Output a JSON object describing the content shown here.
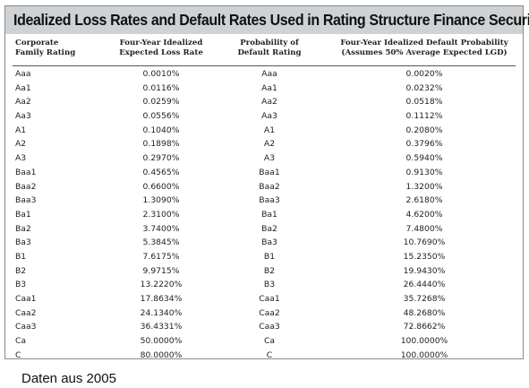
{
  "table": {
    "title": "Idealized Loss Rates and Default Rates Used in Rating Structure Finance Securities",
    "headers": {
      "col1": [
        "Corporate",
        "Family Rating"
      ],
      "col2": [
        "Four-Year Idealized",
        "Expected Loss Rate"
      ],
      "col3": [
        "Probability of",
        "Default Rating"
      ],
      "col4": [
        "Four-Year Idealized Default Probability",
        "(Assumes 50% Average Expected LGD)"
      ]
    },
    "rows": [
      [
        "Aaa",
        "0.0010%",
        "Aaa",
        "0.0020%"
      ],
      [
        "Aa1",
        "0.0116%",
        "Aa1",
        "0.0232%"
      ],
      [
        "Aa2",
        "0.0259%",
        "Aa2",
        "0.0518%"
      ],
      [
        "Aa3",
        "0.0556%",
        "Aa3",
        "0.1112%"
      ],
      [
        "A1",
        "0.1040%",
        "A1",
        "0.2080%"
      ],
      [
        "A2",
        "0.1898%",
        "A2",
        "0.3796%"
      ],
      [
        "A3",
        "0.2970%",
        "A3",
        "0.5940%"
      ],
      [
        "Baa1",
        "0.4565%",
        "Baa1",
        "0.9130%"
      ],
      [
        "Baa2",
        "0.6600%",
        "Baa2",
        "1.3200%"
      ],
      [
        "Baa3",
        "1.3090%",
        "Baa3",
        "2.6180%"
      ],
      [
        "Ba1",
        "2.3100%",
        "Ba1",
        "4.6200%"
      ],
      [
        "Ba2",
        "3.7400%",
        "Ba2",
        "7.4800%"
      ],
      [
        "Ba3",
        "5.3845%",
        "Ba3",
        "10.7690%"
      ],
      [
        "B1",
        "7.6175%",
        "B1",
        "15.2350%"
      ],
      [
        "B2",
        "9.9715%",
        "B2",
        "19.9430%"
      ],
      [
        "B3",
        "13.2220%",
        "B3",
        "26.4440%"
      ],
      [
        "Caa1",
        "17.8634%",
        "Caa1",
        "35.7268%"
      ],
      [
        "Caa2",
        "24.1340%",
        "Caa2",
        "48.2680%"
      ],
      [
        "Caa3",
        "36.4331%",
        "Caa3",
        "72.8662%"
      ],
      [
        "Ca",
        "50.0000%",
        "Ca",
        "100.0000%"
      ],
      [
        "C",
        "80.0000%",
        "C",
        "100.0000%"
      ]
    ]
  },
  "caption": "Daten aus 2005"
}
